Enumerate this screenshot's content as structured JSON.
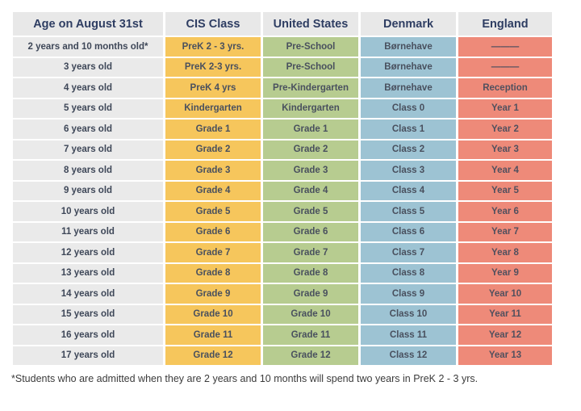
{
  "colors": {
    "header_bg": "#e8e8e8",
    "age_column_bg": "#eaeaea",
    "cis_column_bg": "#f6c65c",
    "us_column_bg": "#b7cc90",
    "denmark_column_bg": "#9dc3d3",
    "england_column_bg": "#ee8a79",
    "header_text": "#2e3d62",
    "cell_text": "#49505e"
  },
  "table": {
    "headers": [
      "Age on August 31st",
      "CIS Class",
      "United States",
      "Denmark",
      "England"
    ],
    "rows": [
      {
        "cells": [
          "2 years and 10 months old*",
          "PreK 2 - 3 yrs.",
          "Pre-School",
          "Børnehave",
          "———"
        ]
      },
      {
        "cells": [
          "3 years old",
          "PreK 2-3 yrs.",
          "Pre-School",
          "Børnehave",
          "———"
        ]
      },
      {
        "cells": [
          "4 years old",
          "PreK 4 yrs",
          "Pre-Kindergarten",
          "Børnehave",
          "Reception"
        ]
      },
      {
        "cells": [
          "5 years old",
          "Kindergarten",
          "Kindergarten",
          "Class 0",
          "Year 1"
        ]
      },
      {
        "cells": [
          "6 years old",
          "Grade 1",
          "Grade 1",
          "Class 1",
          "Year 2"
        ]
      },
      {
        "cells": [
          "7 years old",
          "Grade 2",
          "Grade 2",
          "Class 2",
          "Year 3"
        ]
      },
      {
        "cells": [
          "8 years old",
          "Grade 3",
          "Grade 3",
          "Class 3",
          "Year 4"
        ]
      },
      {
        "cells": [
          "9 years old",
          "Grade 4",
          "Grade 4",
          "Class 4",
          "Year 5"
        ]
      },
      {
        "cells": [
          "10 years old",
          "Grade 5",
          "Grade 5",
          "Class 5",
          "Year 6"
        ]
      },
      {
        "cells": [
          "11 years old",
          "Grade 6",
          "Grade 6",
          "Class 6",
          "Year 7"
        ]
      },
      {
        "cells": [
          "12 years old",
          "Grade 7",
          "Grade 7",
          "Class 7",
          "Year 8"
        ]
      },
      {
        "cells": [
          "13 years old",
          "Grade 8",
          "Grade 8",
          "Class 8",
          "Year 9"
        ]
      },
      {
        "cells": [
          "14 years old",
          "Grade 9",
          "Grade 9",
          "Class 9",
          "Year 10"
        ]
      },
      {
        "cells": [
          "15 years old",
          "Grade 10",
          "Grade 10",
          "Class 10",
          "Year 11"
        ]
      },
      {
        "cells": [
          "16 years old",
          "Grade 11",
          "Grade 11",
          "Class 11",
          "Year 12"
        ]
      },
      {
        "cells": [
          "17 years old",
          "Grade 12",
          "Grade 12",
          "Class 12",
          "Year 13"
        ]
      }
    ]
  },
  "footnote": "*Students who are admitted when they are 2 years and 10 months will spend two years in PreK 2 - 3 yrs."
}
